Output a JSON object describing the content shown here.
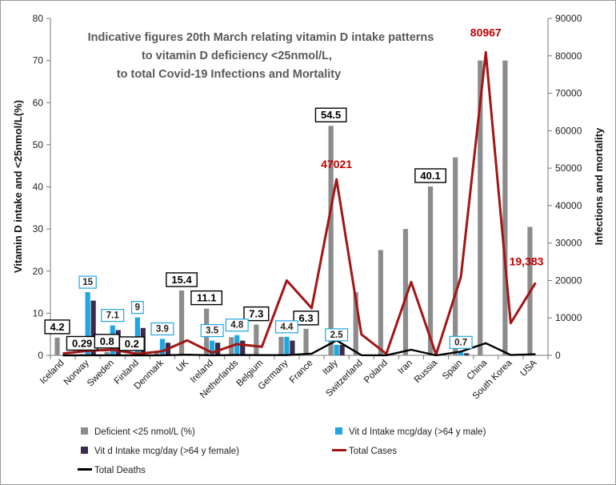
{
  "chart_data": {
    "type": "bar",
    "title": [
      "Indicative figures 20th March relating vitamin D intake patterns",
      "to vitamin D deficiency <25nmol/L,",
      "to total  Covid-19 Infections and Mortality"
    ],
    "ylabel": "Vitamin D intake and <25nmol/L(%)",
    "y2label": "Infections and mortality",
    "ylim": [
      0,
      80
    ],
    "y2lim": [
      0,
      90000
    ],
    "yticks": [
      "0",
      "10",
      "20",
      "30",
      "40",
      "50",
      "60",
      "70",
      "80"
    ],
    "y2ticks": [
      "0",
      "10000",
      "20000",
      "30000",
      "40000",
      "50000",
      "60000",
      "70000",
      "80000",
      "90000"
    ],
    "categories": [
      "Iceland",
      "Norway",
      "Sweden",
      "Finland",
      "Denmark",
      "UK",
      "Ireland",
      "Netherlands",
      "Belgium",
      "Germany",
      "France",
      "Italy",
      "Switzerland",
      "Poland",
      "Iran",
      "Russia",
      "Spain",
      "China",
      "South Korea",
      "USA"
    ],
    "series": [
      {
        "name": "Deficient <25 nmol/L (%)",
        "kind": "bar",
        "axis": "left",
        "color": "#8c8c8c",
        "values": [
          4.2,
          0.29,
          0.8,
          0.2,
          1.0,
          15.4,
          11.1,
          4.3,
          7.3,
          4.4,
          6.3,
          54.5,
          15.0,
          25.0,
          30.0,
          40.1,
          47.0,
          70.0,
          70.0,
          30.5
        ]
      },
      {
        "name": "Vit d Intake mcg/day (>64 y male)",
        "kind": "bar",
        "axis": "left",
        "color": "#1ea7e1",
        "values": [
          0,
          15,
          7.1,
          9,
          3.9,
          0,
          3.5,
          4.8,
          0,
          4.4,
          0,
          2.5,
          0,
          0,
          0,
          0,
          0.7,
          0,
          0,
          0
        ]
      },
      {
        "name": "Vit d Intake mcg/day (>64 y female)",
        "kind": "bar",
        "axis": "left",
        "color": "#3c2b4c",
        "values": [
          0,
          13,
          6,
          6.5,
          3,
          0,
          3,
          3.5,
          0,
          3.5,
          0,
          2.5,
          0,
          0,
          0,
          0,
          0.5,
          0,
          0,
          0
        ]
      },
      {
        "name": "Total Cases",
        "kind": "line",
        "axis": "right",
        "color": "#a31515",
        "values": [
          500,
          1200,
          1500,
          400,
          1100,
          4000,
          700,
          3000,
          2300,
          20000,
          12600,
          47021,
          5600,
          400,
          19600,
          200,
          21000,
          80967,
          8600,
          19383
        ]
      },
      {
        "name": "Total Deaths",
        "kind": "line",
        "axis": "right",
        "color": "#000000",
        "values": [
          0,
          5,
          15,
          0,
          5,
          180,
          5,
          100,
          70,
          70,
          450,
          4000,
          50,
          5,
          1500,
          0,
          1000,
          3250,
          100,
          300
        ]
      }
    ],
    "data_labels": [
      {
        "series": 0,
        "category": 0,
        "text": "4.2",
        "style": "black"
      },
      {
        "series": 0,
        "category": 1,
        "text": "0.29",
        "style": "black"
      },
      {
        "series": 0,
        "category": 2,
        "text": "0.8",
        "style": "black"
      },
      {
        "series": 0,
        "category": 3,
        "text": "0.2",
        "style": "black"
      },
      {
        "series": 0,
        "category": 5,
        "text": "15.4",
        "style": "black"
      },
      {
        "series": 0,
        "category": 6,
        "text": "11.1",
        "style": "black"
      },
      {
        "series": 0,
        "category": 8,
        "text": "7.3",
        "style": "black"
      },
      {
        "series": 0,
        "category": 10,
        "text": "6.3",
        "style": "black"
      },
      {
        "series": 0,
        "category": 11,
        "text": "54.5",
        "style": "black"
      },
      {
        "series": 0,
        "category": 15,
        "text": "40.1",
        "style": "black"
      },
      {
        "series": 1,
        "category": 1,
        "text": "15",
        "style": "blue"
      },
      {
        "series": 1,
        "category": 2,
        "text": "7.1",
        "style": "blue"
      },
      {
        "series": 1,
        "category": 3,
        "text": "9",
        "style": "blue"
      },
      {
        "series": 1,
        "category": 4,
        "text": "3.9",
        "style": "blue"
      },
      {
        "series": 1,
        "category": 6,
        "text": "3.5",
        "style": "blue"
      },
      {
        "series": 1,
        "category": 7,
        "text": "4.8",
        "style": "blue"
      },
      {
        "series": 1,
        "category": 9,
        "text": "4.4",
        "style": "blue"
      },
      {
        "series": 1,
        "category": 11,
        "text": "2.5",
        "style": "blue"
      },
      {
        "series": 1,
        "category": 16,
        "text": "0.7",
        "style": "blue"
      }
    ],
    "annotations": [
      {
        "series": 3,
        "category": 11,
        "text": "47021"
      },
      {
        "series": 3,
        "category": 17,
        "text": "80967"
      },
      {
        "series": 3,
        "category": 19,
        "text": "19,383"
      }
    ],
    "legend": [
      {
        "series": 0,
        "label": "Deficient <25 nmol/L (%)",
        "kind": "bar",
        "color": "#8c8c8c"
      },
      {
        "series": 1,
        "label": "Vit d Intake mcg/day (>64 y male)",
        "kind": "bar",
        "color": "#1ea7e1"
      },
      {
        "series": 2,
        "label": "Vit d Intake mcg/day (>64 y female)",
        "kind": "bar",
        "color": "#3c2b4c"
      },
      {
        "series": 3,
        "label": "Total Cases",
        "kind": "line",
        "color": "#a31515"
      },
      {
        "series": 4,
        "label": "Total Deaths",
        "kind": "line",
        "color": "#000000"
      }
    ],
    "legend_position": "bottom",
    "grid": false
  }
}
